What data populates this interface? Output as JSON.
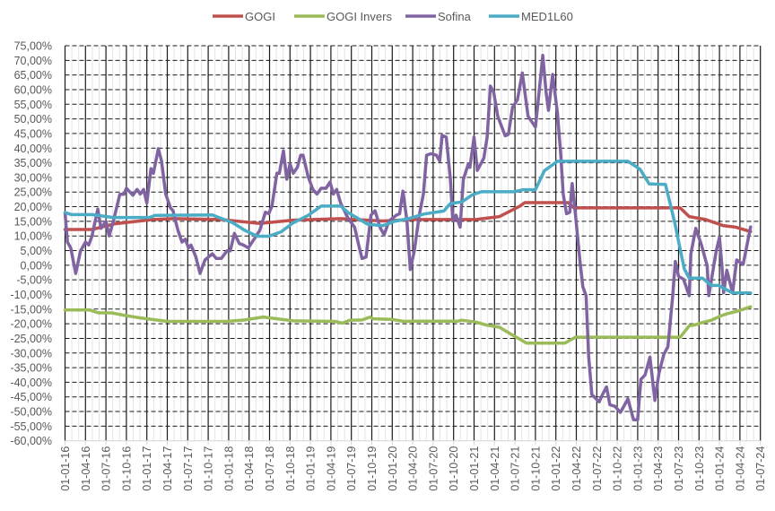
{
  "chart_data": {
    "type": "line",
    "title": "",
    "xlabel": "",
    "ylabel": "",
    "xlim": [
      2016.0,
      2024.5
    ],
    "ylim": [
      -60,
      75
    ],
    "y_step": 5,
    "grid": true,
    "legend_position": "top",
    "y_tick_labels": [
      "75,00%",
      "70,00%",
      "65,00%",
      "60,00%",
      "55,00%",
      "50,00%",
      "45,00%",
      "40,00%",
      "35,00%",
      "30,00%",
      "25,00%",
      "20,00%",
      "15,00%",
      "10,00%",
      "5,00%",
      "0,00%",
      "-5,00%",
      "-10,00%",
      "-15,00%",
      "-20,00%",
      "-25,00%",
      "-30,00%",
      "-35,00%",
      "-40,00%",
      "-45,00%",
      "-50,00%",
      "-55,00%",
      "-60,00%"
    ],
    "x_tick_labels": [
      "01-01-16",
      "01-04-16",
      "01-07-16",
      "01-10-16",
      "01-01-17",
      "01-04-17",
      "01-07-17",
      "01-10-17",
      "01-01-18",
      "01-04-18",
      "01-07-18",
      "01-10-18",
      "01-01-19",
      "01-04-19",
      "01-07-19",
      "01-10-19",
      "01-01-20",
      "01-04-20",
      "01-07-20",
      "01-10-20",
      "01-01-21",
      "01-04-21",
      "01-07-21",
      "01-10-21",
      "01-01-22",
      "01-04-22",
      "01-07-22",
      "01-10-22",
      "01-01-23",
      "01-04-23",
      "01-07-23",
      "01-10-23",
      "01-01-24",
      "01-04-24",
      "01-07-24"
    ],
    "x_units": "decimal year",
    "y_units": "percent",
    "series": [
      {
        "name": "GOGI",
        "color": "#c0504d",
        "points": [
          [
            2016.0,
            12.2
          ],
          [
            2016.33,
            12.2
          ],
          [
            2016.6,
            14.1
          ],
          [
            2017.07,
            15.6
          ],
          [
            2017.32,
            15.9
          ],
          [
            2017.91,
            15.6
          ],
          [
            2018.38,
            14.3
          ],
          [
            2018.49,
            14.6
          ],
          [
            2018.78,
            15.4
          ],
          [
            2019.37,
            15.9
          ],
          [
            2019.88,
            15.1
          ],
          [
            2020.25,
            15.6
          ],
          [
            2020.73,
            15.6
          ],
          [
            2021.02,
            15.6
          ],
          [
            2021.31,
            16.6
          ],
          [
            2021.56,
            20.2
          ],
          [
            2021.62,
            21.4
          ],
          [
            2022.15,
            21.4
          ],
          [
            2022.22,
            19.6
          ],
          [
            2023.52,
            19.6
          ],
          [
            2023.63,
            16.6
          ],
          [
            2023.83,
            15.6
          ],
          [
            2024.05,
            13.5
          ],
          [
            2024.2,
            13.0
          ],
          [
            2024.38,
            11.5
          ]
        ]
      },
      {
        "name": "GOGI Invers",
        "color": "#9bbb59",
        "points": [
          [
            2016.0,
            -15.3
          ],
          [
            2016.3,
            -15.3
          ],
          [
            2016.41,
            -16.3
          ],
          [
            2016.57,
            -16.3
          ],
          [
            2016.74,
            -17.2
          ],
          [
            2016.92,
            -18.0
          ],
          [
            2017.25,
            -19.2
          ],
          [
            2017.98,
            -19.2
          ],
          [
            2018.2,
            -18.7
          ],
          [
            2018.42,
            -17.7
          ],
          [
            2018.79,
            -19.0
          ],
          [
            2019.3,
            -19.2
          ],
          [
            2019.39,
            -19.8
          ],
          [
            2019.48,
            -18.8
          ],
          [
            2019.63,
            -18.7
          ],
          [
            2019.73,
            -17.7
          ],
          [
            2019.77,
            -18.3
          ],
          [
            2019.99,
            -18.5
          ],
          [
            2020.14,
            -19.2
          ],
          [
            2020.3,
            -19.1
          ],
          [
            2020.8,
            -19.1
          ],
          [
            2020.85,
            -18.8
          ],
          [
            2021.02,
            -19.4
          ],
          [
            2021.16,
            -20.5
          ],
          [
            2021.31,
            -21.2
          ],
          [
            2021.46,
            -23.7
          ],
          [
            2021.56,
            -25.3
          ],
          [
            2021.64,
            -26.6
          ],
          [
            2022.11,
            -26.6
          ],
          [
            2022.24,
            -24.6
          ],
          [
            2023.52,
            -24.6
          ],
          [
            2023.63,
            -20.7
          ],
          [
            2023.7,
            -20.4
          ],
          [
            2023.78,
            -19.7
          ],
          [
            2023.9,
            -18.8
          ],
          [
            2024.01,
            -17.4
          ],
          [
            2024.09,
            -16.6
          ],
          [
            2024.23,
            -15.6
          ],
          [
            2024.38,
            -14.2
          ]
        ]
      },
      {
        "name": "Sofina",
        "color": "#8064a2",
        "points": [
          [
            2016.0,
            18.0
          ],
          [
            2016.03,
            7.9
          ],
          [
            2016.07,
            5.9
          ],
          [
            2016.13,
            -2.8
          ],
          [
            2016.19,
            4.9
          ],
          [
            2016.25,
            7.9
          ],
          [
            2016.29,
            6.9
          ],
          [
            2016.33,
            10.0
          ],
          [
            2016.4,
            19.2
          ],
          [
            2016.44,
            12.6
          ],
          [
            2016.5,
            15.0
          ],
          [
            2016.54,
            10.0
          ],
          [
            2016.59,
            15.0
          ],
          [
            2016.67,
            24.2
          ],
          [
            2016.72,
            24.2
          ],
          [
            2016.75,
            26.3
          ],
          [
            2016.83,
            23.9
          ],
          [
            2016.88,
            25.9
          ],
          [
            2016.92,
            24.3
          ],
          [
            2016.96,
            25.9
          ],
          [
            2017.0,
            21.2
          ],
          [
            2017.05,
            33.0
          ],
          [
            2017.08,
            31.4
          ],
          [
            2017.14,
            39.8
          ],
          [
            2017.18,
            35.6
          ],
          [
            2017.23,
            24.3
          ],
          [
            2017.29,
            19.6
          ],
          [
            2017.32,
            18.6
          ],
          [
            2017.38,
            11.9
          ],
          [
            2017.43,
            7.9
          ],
          [
            2017.47,
            8.9
          ],
          [
            2017.51,
            5.9
          ],
          [
            2017.54,
            6.9
          ],
          [
            2017.6,
            2.8
          ],
          [
            2017.65,
            -2.8
          ],
          [
            2017.71,
            1.8
          ],
          [
            2017.8,
            3.9
          ],
          [
            2017.85,
            2.3
          ],
          [
            2017.91,
            2.3
          ],
          [
            2017.98,
            4.9
          ],
          [
            2018.02,
            4.9
          ],
          [
            2018.07,
            10.9
          ],
          [
            2018.13,
            7.4
          ],
          [
            2018.18,
            6.9
          ],
          [
            2018.24,
            5.9
          ],
          [
            2018.31,
            8.9
          ],
          [
            2018.38,
            11.9
          ],
          [
            2018.45,
            18.1
          ],
          [
            2018.49,
            17.6
          ],
          [
            2018.53,
            20.2
          ],
          [
            2018.59,
            31.4
          ],
          [
            2018.62,
            31.4
          ],
          [
            2018.67,
            39.1
          ],
          [
            2018.71,
            29.4
          ],
          [
            2018.75,
            34.6
          ],
          [
            2018.79,
            31.4
          ],
          [
            2018.84,
            33.4
          ],
          [
            2018.88,
            37.6
          ],
          [
            2018.91,
            37.6
          ],
          [
            2018.97,
            30.4
          ],
          [
            2019.03,
            25.9
          ],
          [
            2019.08,
            24.3
          ],
          [
            2019.13,
            26.3
          ],
          [
            2019.19,
            26.3
          ],
          [
            2019.24,
            28.4
          ],
          [
            2019.28,
            24.3
          ],
          [
            2019.32,
            25.9
          ],
          [
            2019.37,
            21.2
          ],
          [
            2019.46,
            16.0
          ],
          [
            2019.54,
            13.0
          ],
          [
            2019.59,
            6.9
          ],
          [
            2019.63,
            2.3
          ],
          [
            2019.68,
            2.8
          ],
          [
            2019.74,
            17.1
          ],
          [
            2019.79,
            18.6
          ],
          [
            2019.85,
            13.0
          ],
          [
            2019.9,
            10.4
          ],
          [
            2019.96,
            15.1
          ],
          [
            2020.05,
            17.1
          ],
          [
            2020.09,
            17.6
          ],
          [
            2020.13,
            25.3
          ],
          [
            2020.18,
            15.1
          ],
          [
            2020.22,
            -1.5
          ],
          [
            2020.27,
            4.9
          ],
          [
            2020.33,
            17.1
          ],
          [
            2020.38,
            24.3
          ],
          [
            2020.42,
            37.6
          ],
          [
            2020.47,
            38.1
          ],
          [
            2020.54,
            37.6
          ],
          [
            2020.58,
            35.6
          ],
          [
            2020.61,
            44.3
          ],
          [
            2020.66,
            43.8
          ],
          [
            2020.71,
            29.4
          ],
          [
            2020.74,
            15.1
          ],
          [
            2020.78,
            17.1
          ],
          [
            2020.83,
            13.0
          ],
          [
            2020.87,
            29.4
          ],
          [
            2020.93,
            34.6
          ],
          [
            2020.95,
            33.4
          ],
          [
            2021.0,
            43.8
          ],
          [
            2021.04,
            32.4
          ],
          [
            2021.12,
            36.6
          ],
          [
            2021.16,
            43.8
          ],
          [
            2021.2,
            61.2
          ],
          [
            2021.24,
            59.1
          ],
          [
            2021.29,
            50.9
          ],
          [
            2021.38,
            44.2
          ],
          [
            2021.42,
            44.7
          ],
          [
            2021.47,
            54.0
          ],
          [
            2021.53,
            56.5
          ],
          [
            2021.59,
            65.7
          ],
          [
            2021.66,
            50.9
          ],
          [
            2021.75,
            47.2
          ],
          [
            2021.78,
            54.9
          ],
          [
            2021.84,
            71.7
          ],
          [
            2021.88,
            59.1
          ],
          [
            2021.91,
            52.9
          ],
          [
            2021.96,
            65.2
          ],
          [
            2022.02,
            51.9
          ],
          [
            2022.06,
            37.6
          ],
          [
            2022.09,
            24.3
          ],
          [
            2022.13,
            17.6
          ],
          [
            2022.17,
            18.1
          ],
          [
            2022.2,
            27.9
          ],
          [
            2022.24,
            17.1
          ],
          [
            2022.3,
            -0.3
          ],
          [
            2022.33,
            -7.4
          ],
          [
            2022.37,
            -10.4
          ],
          [
            2022.4,
            -30.9
          ],
          [
            2022.44,
            -44.2
          ],
          [
            2022.53,
            -46.7
          ],
          [
            2022.57,
            -44.2
          ],
          [
            2022.62,
            -41.6
          ],
          [
            2022.66,
            -47.7
          ],
          [
            2022.72,
            -48.2
          ],
          [
            2022.79,
            -50.3
          ],
          [
            2022.88,
            -45.7
          ],
          [
            2022.95,
            -52.8
          ],
          [
            2023.0,
            -52.8
          ],
          [
            2023.04,
            -39.0
          ],
          [
            2023.09,
            -37.5
          ],
          [
            2023.15,
            -31.4
          ],
          [
            2023.21,
            -46.2
          ],
          [
            2023.26,
            -37.0
          ],
          [
            2023.32,
            -30.4
          ],
          [
            2023.37,
            -27.9
          ],
          [
            2023.43,
            -10.0
          ],
          [
            2023.46,
            1.3
          ],
          [
            2023.5,
            -3.8
          ],
          [
            2023.56,
            -4.8
          ],
          [
            2023.63,
            -10.4
          ],
          [
            2023.65,
            3.9
          ],
          [
            2023.71,
            12.6
          ],
          [
            2023.78,
            6.9
          ],
          [
            2023.85,
            -0.2
          ],
          [
            2023.87,
            -10.4
          ],
          [
            2023.96,
            4.9
          ],
          [
            2024.0,
            9.5
          ],
          [
            2024.03,
            -0.2
          ],
          [
            2024.05,
            -9.4
          ],
          [
            2024.09,
            -1.7
          ],
          [
            2024.16,
            -9.4
          ],
          [
            2024.21,
            1.8
          ],
          [
            2024.29,
            0.3
          ],
          [
            2024.38,
            13.1
          ]
        ]
      },
      {
        "name": "MED1L60",
        "color": "#4bacc6",
        "points": [
          [
            2016.0,
            18.0
          ],
          [
            2016.08,
            17.3
          ],
          [
            2016.33,
            17.3
          ],
          [
            2016.59,
            16.3
          ],
          [
            2017.03,
            16.3
          ],
          [
            2017.1,
            17.0
          ],
          [
            2017.8,
            17.2
          ],
          [
            2017.91,
            16.0
          ],
          [
            2018.05,
            14.5
          ],
          [
            2018.2,
            11.9
          ],
          [
            2018.35,
            9.9
          ],
          [
            2018.49,
            9.9
          ],
          [
            2018.64,
            11.4
          ],
          [
            2018.79,
            14.5
          ],
          [
            2018.97,
            17.0
          ],
          [
            2019.13,
            20.2
          ],
          [
            2019.37,
            20.2
          ],
          [
            2019.46,
            18.0
          ],
          [
            2019.55,
            16.5
          ],
          [
            2019.7,
            14.0
          ],
          [
            2019.88,
            13.5
          ],
          [
            2020.03,
            15.0
          ],
          [
            2020.21,
            16.0
          ],
          [
            2020.39,
            17.5
          ],
          [
            2020.63,
            18.5
          ],
          [
            2020.71,
            21.1
          ],
          [
            2020.85,
            21.6
          ],
          [
            2020.98,
            24.1
          ],
          [
            2021.09,
            25.1
          ],
          [
            2021.49,
            25.1
          ],
          [
            2021.6,
            25.8
          ],
          [
            2021.75,
            25.8
          ],
          [
            2021.86,
            32.3
          ],
          [
            2022.02,
            35.5
          ],
          [
            2022.88,
            35.5
          ],
          [
            2023.03,
            32.8
          ],
          [
            2023.14,
            27.8
          ],
          [
            2023.34,
            27.6
          ],
          [
            2023.45,
            15.0
          ],
          [
            2023.57,
            -1.3
          ],
          [
            2023.63,
            -4.4
          ],
          [
            2023.79,
            -4.4
          ],
          [
            2023.9,
            -6.9
          ],
          [
            2023.99,
            -6.9
          ],
          [
            2024.16,
            -9.5
          ],
          [
            2024.38,
            -9.5
          ]
        ]
      }
    ]
  }
}
